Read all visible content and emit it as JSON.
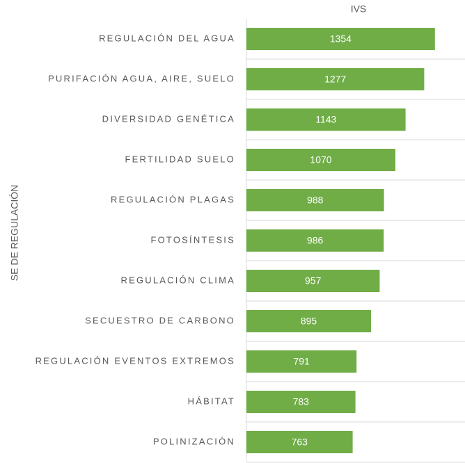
{
  "chart_data": {
    "type": "barh",
    "title": "IVS",
    "y_label": "SE DE REGULACIÓN",
    "categories": [
      "REGULACIÓN DEL AGUA",
      "PURIFACIÓN AGUA, AIRE, SUELO",
      "DIVERSIDAD GENÉTICA",
      "FERTILIDAD SUELO",
      "REGULACIÓN PLAGAS",
      "FOTOSÍNTESIS",
      "REGULACIÓN CLIMA",
      "SECUESTRO DE CARBONO",
      "REGULACIÓN EVENTOS EXTREMOS",
      "HÁBITAT",
      "POLINIZACIÓN"
    ],
    "values": [
      1354,
      1277,
      1143,
      1070,
      988,
      986,
      957,
      895,
      791,
      783,
      763
    ],
    "color": "#70ad47",
    "xlim": [
      0,
      1570
    ]
  }
}
